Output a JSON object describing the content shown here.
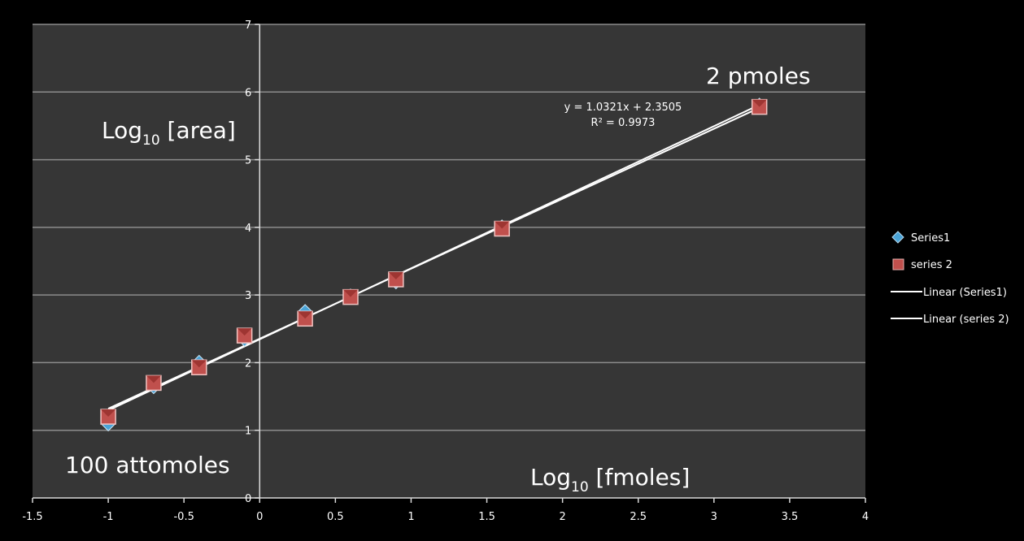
{
  "chart_data": {
    "type": "scatter",
    "xlim": [
      -1.5,
      4
    ],
    "ylim": [
      0,
      7
    ],
    "x_ticks": [
      "-1.5",
      "-1",
      "-0.5",
      "0",
      "0.5",
      "1",
      "1.5",
      "2",
      "2.5",
      "3",
      "3.5",
      "4"
    ],
    "y_ticks": [
      "0",
      "1",
      "2",
      "3",
      "4",
      "5",
      "6",
      "7"
    ],
    "grid": "horizontal",
    "legend_position": "right",
    "series": [
      {
        "name": "Series1",
        "marker": "diamond",
        "color": "#4aa3d6",
        "x": [
          -1,
          -0.7,
          -0.4,
          -0.1,
          0.3,
          0.6,
          0.9,
          1.6,
          3.3
        ],
        "y": [
          1.1,
          1.65,
          2.0,
          2.35,
          2.75,
          2.98,
          3.2,
          4.0,
          5.8
        ]
      },
      {
        "name": "series 2",
        "marker": "square",
        "color": "#c0504d",
        "x": [
          -1,
          -0.7,
          -0.4,
          -0.1,
          0.3,
          0.6,
          0.9,
          1.6,
          3.3
        ],
        "y": [
          1.2,
          1.7,
          1.93,
          2.4,
          2.65,
          2.97,
          3.23,
          3.98,
          5.78
        ]
      }
    ],
    "trendlines": [
      {
        "name": "Linear (Series1)",
        "x_range": [
          -1,
          3.3
        ]
      },
      {
        "name": "Linear (series 2)",
        "x_range": [
          -1,
          3.3
        ]
      }
    ],
    "trendline_color": "#ffffff",
    "equation": "y = 1.0321x + 2.3505",
    "r_squared": "R² = 0.9973",
    "annotations": {
      "y_label_main": "Log",
      "y_label_sub": "10",
      "y_label_rest": " [area]",
      "x_label_main": "Log",
      "x_label_sub": "10",
      "x_label_rest": " [fmoles]",
      "high_label": "2 pmoles",
      "low_label": "100 attomoles"
    }
  },
  "colors": {
    "background": "#000000",
    "plot_area": "#363636",
    "gridline": "#8c8c8c",
    "axis": "#d9d9d9"
  }
}
